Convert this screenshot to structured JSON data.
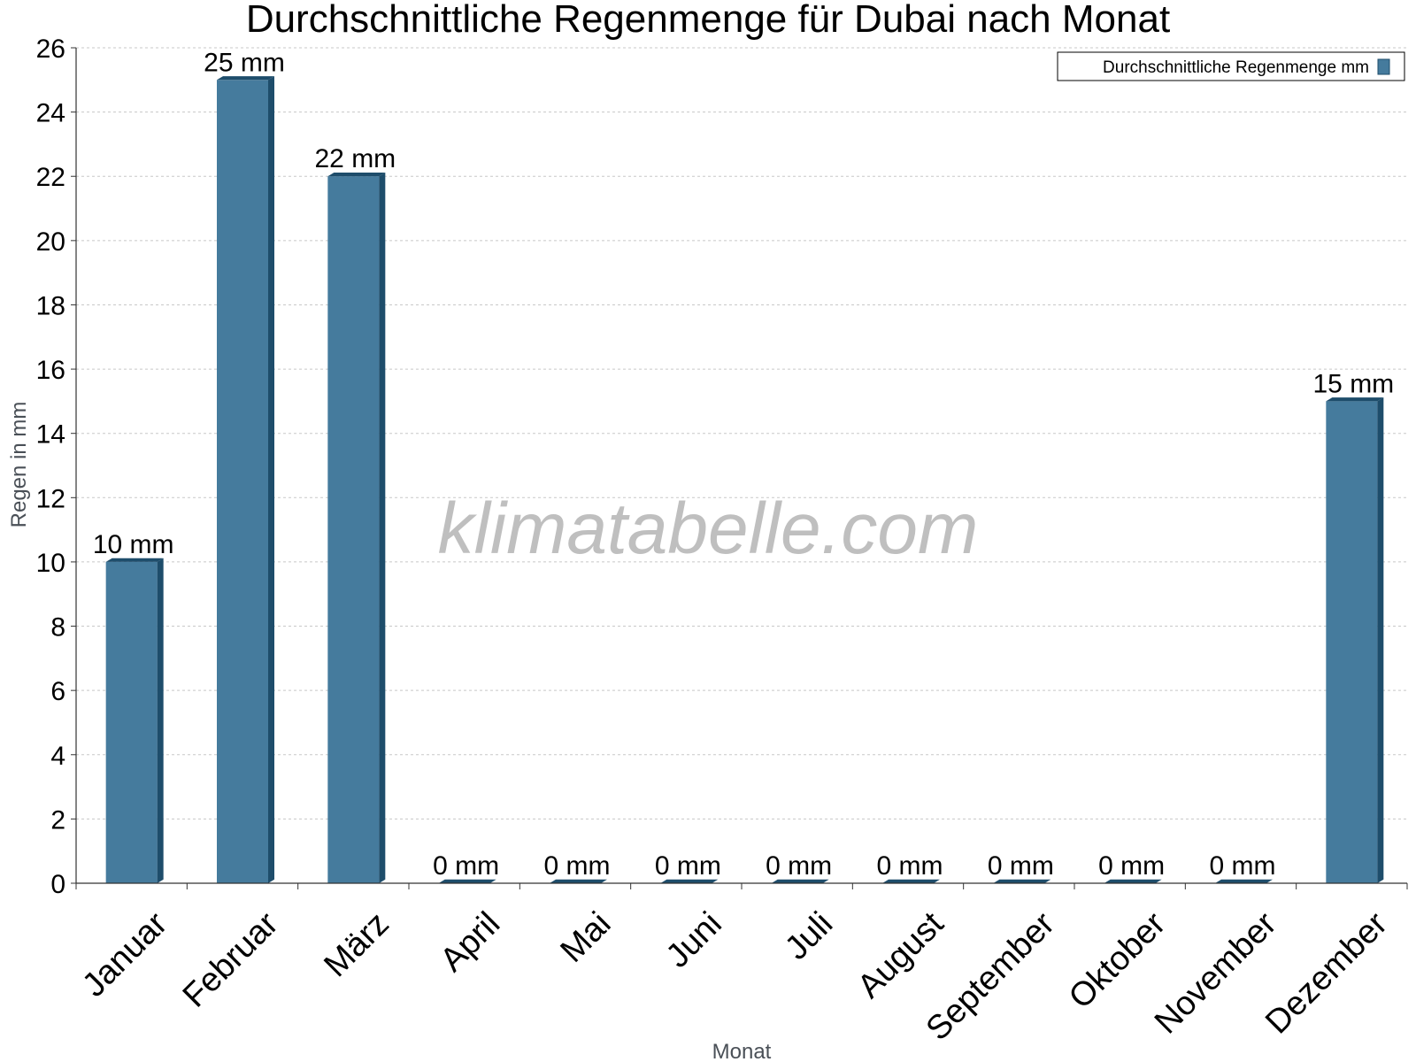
{
  "chart_data": {
    "type": "bar",
    "title": "Durchschnittliche Regenmenge für Dubai nach Monat",
    "xlabel": "Monat",
    "ylabel": "Regen in mm",
    "categories": [
      "Januar",
      "Februar",
      "März",
      "April",
      "Mai",
      "Juni",
      "Juli",
      "August",
      "September",
      "Oktober",
      "November",
      "Dezember"
    ],
    "series": [
      {
        "name": "Durchschnittliche Regenmenge mm",
        "values": [
          10,
          25,
          22,
          0,
          0,
          0,
          0,
          0,
          0,
          0,
          0,
          15
        ],
        "labels": [
          "10 mm",
          "25 mm",
          "22 mm",
          "0 mm",
          "0 mm",
          "0 mm",
          "0 mm",
          "0 mm",
          "0 mm",
          "0 mm",
          "0 mm",
          "15 mm"
        ]
      }
    ],
    "ylim": [
      0,
      26
    ],
    "yticks": [
      "0",
      "2",
      "4",
      "6",
      "8",
      "10",
      "12",
      "14",
      "16",
      "18",
      "20",
      "22",
      "24",
      "26"
    ],
    "grid": true,
    "legend_position": "top-right",
    "colors": {
      "bar": "#457b9d",
      "bar_side": "#1e4d6b",
      "grid": "#c8c8c8",
      "axis": "#333333"
    },
    "watermark": "klimatabelle.com"
  }
}
